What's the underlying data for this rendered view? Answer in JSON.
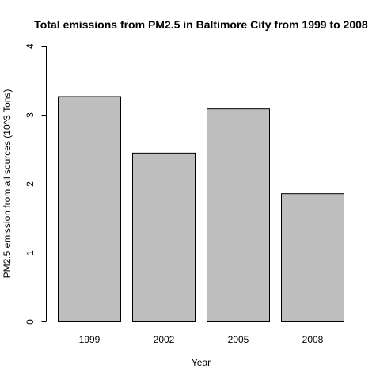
{
  "chart_data": {
    "type": "bar",
    "title": "Total emissions from PM2.5 in Baltimore City from 1999 to 2008",
    "xlabel": "Year",
    "ylabel": "PM2.5 emission from all sources (10^3 Tons)",
    "categories": [
      "1999",
      "2002",
      "2005",
      "2008"
    ],
    "values": [
      3.27,
      2.45,
      3.09,
      1.86
    ],
    "ylim": [
      0,
      4
    ],
    "yticks": [
      0,
      1,
      2,
      3,
      4
    ],
    "grid": false,
    "bar_color": "#bebebe",
    "bar_border_color": "#000000"
  }
}
